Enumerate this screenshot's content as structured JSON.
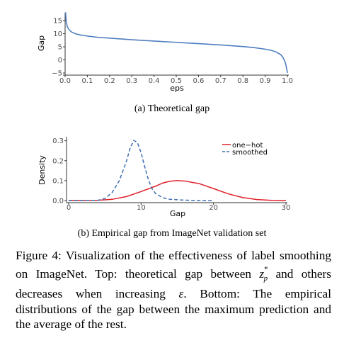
{
  "chart_data": [
    {
      "type": "line",
      "xlabel": "eps",
      "ylabel": "Gap",
      "xlim": [
        0.0,
        1.0
      ],
      "ylim": [
        -5,
        18
      ],
      "xticks": [
        "0.0",
        "0.1",
        "0.2",
        "0.3",
        "0.4",
        "0.5",
        "0.6",
        "0.7",
        "0.8",
        "0.9",
        "1.0"
      ],
      "yticks": [
        {
          "value": 15,
          "label": "15"
        },
        {
          "value": 10,
          "label": "10"
        },
        {
          "value": 5,
          "label": "5"
        },
        {
          "value": 0,
          "label": "0"
        },
        {
          "value": -5,
          "label": "-5"
        }
      ],
      "grid": false,
      "series": [
        {
          "color": "#4f7fc0",
          "x": [
            0.002,
            0.005,
            0.01,
            0.02,
            0.03,
            0.05,
            0.07,
            0.1,
            0.15,
            0.2,
            0.3,
            0.4,
            0.5,
            0.6,
            0.7,
            0.8,
            0.85,
            0.9,
            0.93,
            0.95,
            0.97,
            0.98,
            0.99,
            0.995,
            0.998,
            1.0
          ],
          "y": [
            18.2,
            14.5,
            12.6,
            11.3,
            10.6,
            9.9,
            9.5,
            9.1,
            8.6,
            8.3,
            7.7,
            7.2,
            6.7,
            6.2,
            5.7,
            5.1,
            4.7,
            4.1,
            3.6,
            3.0,
            2.0,
            1.0,
            -0.8,
            -2.5,
            -4.0,
            -5.0
          ]
        }
      ],
      "subcaption": "(a) Theoretical gap"
    },
    {
      "type": "line",
      "xlabel": "Gap",
      "ylabel": "Density",
      "xlim": [
        0,
        30
      ],
      "ylim": [
        0,
        0.32
      ],
      "xticks": [
        {
          "value": 0,
          "label": "0"
        },
        {
          "value": 10,
          "label": "10"
        },
        {
          "value": 20,
          "label": "20"
        },
        {
          "value": 30,
          "label": "30"
        }
      ],
      "yticks": [
        {
          "value": 0.0,
          "label": "0.0"
        },
        {
          "value": 0.1,
          "label": "0.1"
        },
        {
          "value": 0.2,
          "label": "0.2"
        },
        {
          "value": 0.3,
          "label": "0.3"
        }
      ],
      "grid": false,
      "legend": "top-right",
      "series": [
        {
          "name": "one−hot",
          "color": "#e0202a",
          "dash": false,
          "x": [
            0,
            4,
            6,
            8,
            10,
            12,
            13,
            14,
            15,
            16,
            18,
            20,
            22,
            24,
            26,
            28,
            30
          ],
          "y": [
            0.0,
            0.001,
            0.006,
            0.02,
            0.045,
            0.072,
            0.088,
            0.097,
            0.1,
            0.098,
            0.085,
            0.06,
            0.034,
            0.015,
            0.005,
            0.001,
            0.0
          ]
        },
        {
          "name": "smoothed",
          "color": "#3f6fb0",
          "dash": true,
          "x": [
            0,
            4,
            5,
            6,
            7,
            8,
            8.5,
            9,
            9.5,
            10,
            10.5,
            11,
            11.5,
            12,
            13,
            14,
            16,
            18,
            20
          ],
          "y": [
            0.0,
            0.001,
            0.01,
            0.04,
            0.1,
            0.2,
            0.265,
            0.302,
            0.29,
            0.24,
            0.17,
            0.105,
            0.06,
            0.035,
            0.014,
            0.006,
            0.002,
            0.0,
            0.0
          ]
        }
      ],
      "subcaption": "(b) Empirical gap from ImageNet validation set"
    }
  ],
  "caption": {
    "before_z": "Figure 4: Visualization of the effectiveness of label smoothing on ImageNet. Top: theoretical gap between ",
    "z_base": "z",
    "z_sup": "*",
    "z_sub": "p",
    "after_z": " and others decreases when increasing ",
    "epsilon": "ε",
    "after_eps": ". Bottom: The empirical distributions of the gap between the maximum prediction and the average of the rest."
  }
}
